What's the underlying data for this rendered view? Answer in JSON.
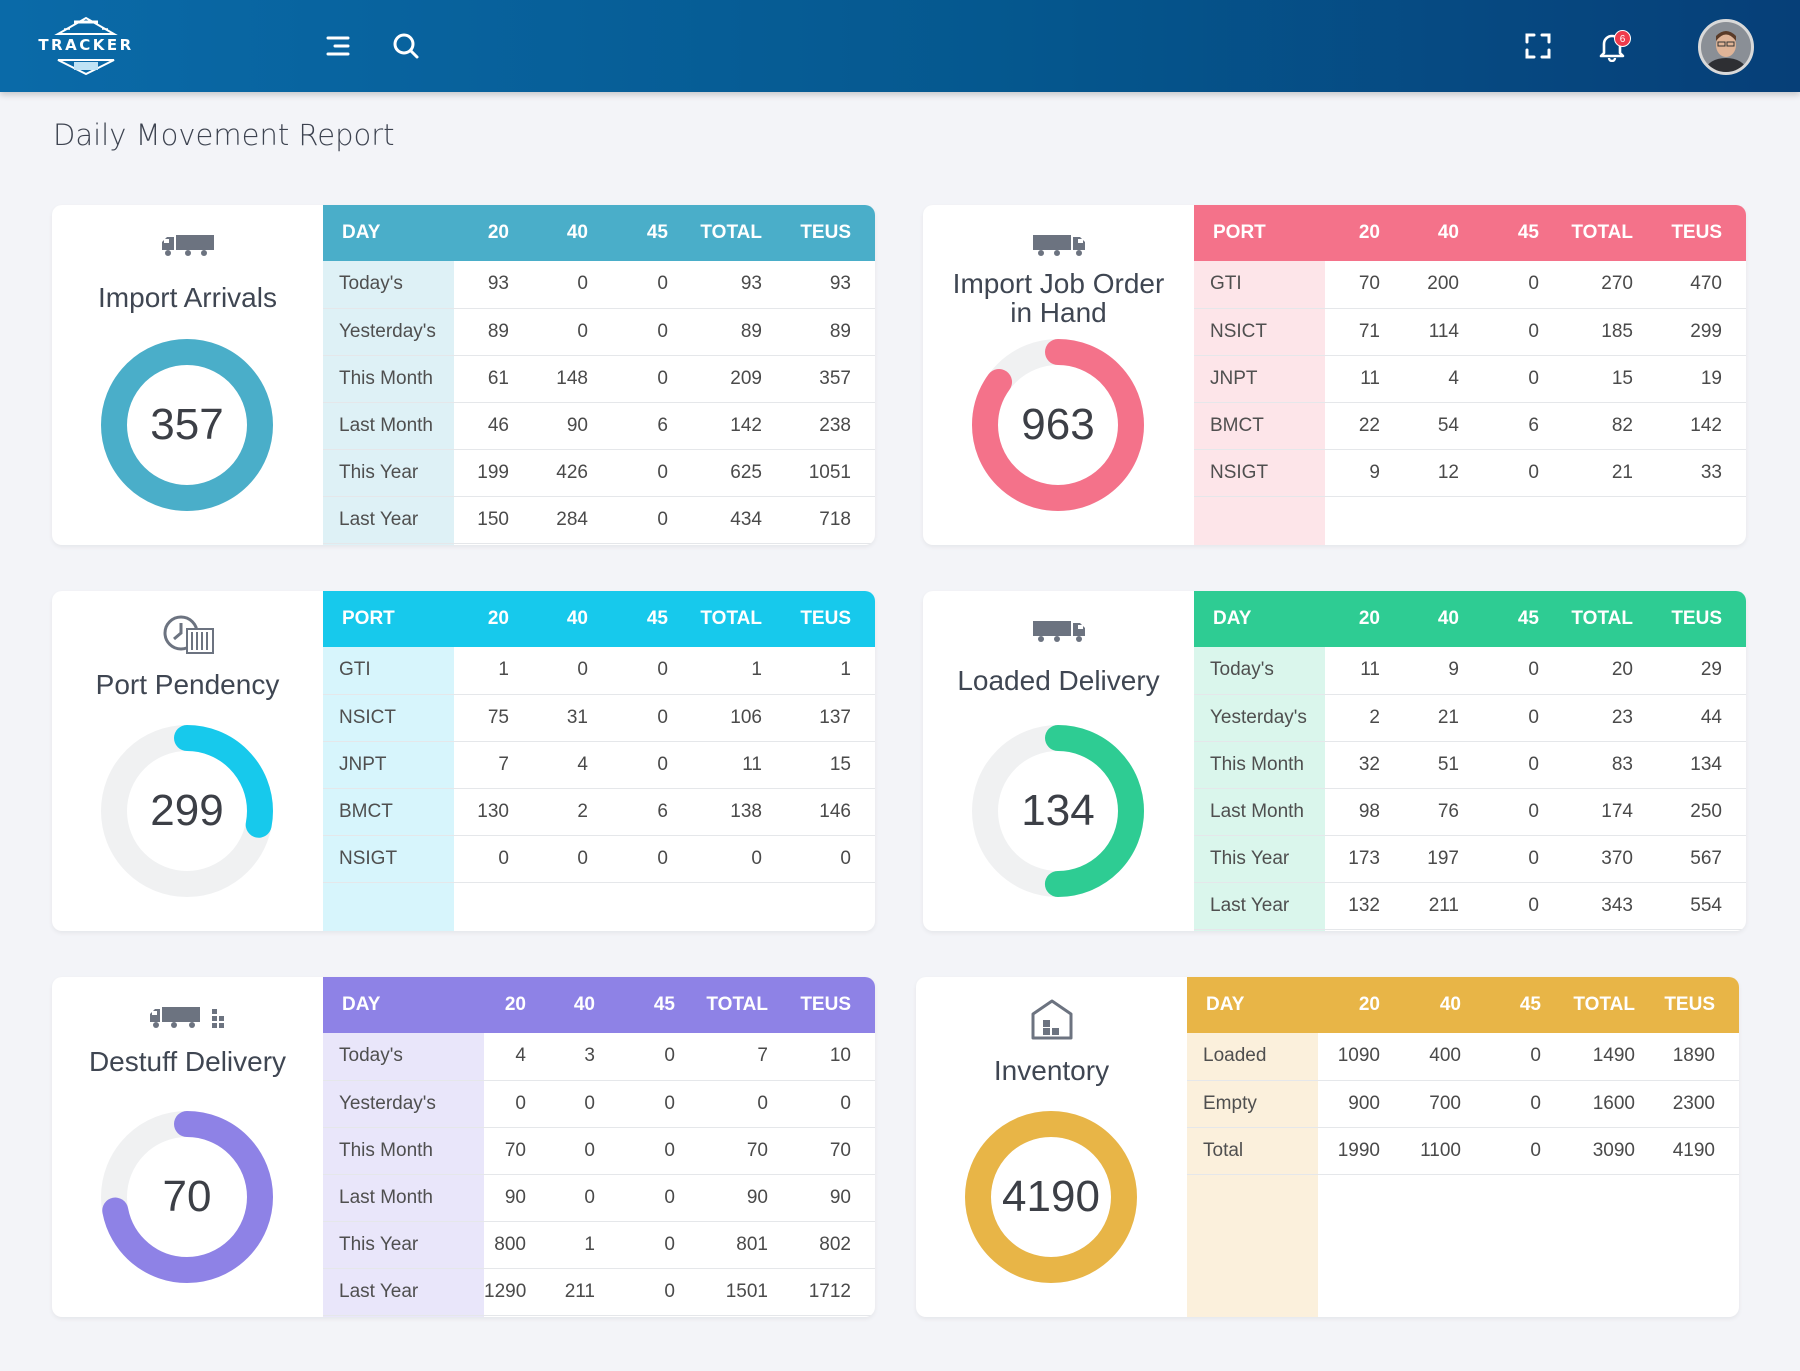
{
  "header": {
    "logo_text": "TRACKER",
    "notification_count": "6",
    "icons": [
      "menu-icon",
      "search-icon",
      "fullscreen-icon",
      "bell-icon"
    ]
  },
  "page": {
    "title": "Daily Movement Report"
  },
  "cards": {
    "import_arrivals": {
      "title": "Import Arrivals",
      "value": "357",
      "fraction": 1.0,
      "color": "#4aaec9",
      "col_tint": "#def1f6",
      "columns": [
        "DAY",
        "20",
        "40",
        "45",
        "TOTAL",
        "TEUS"
      ],
      "rows": [
        [
          "Today's",
          "93",
          "0",
          "0",
          "93",
          "93"
        ],
        [
          "Yesterday's",
          "89",
          "0",
          "0",
          "89",
          "89"
        ],
        [
          "This Month",
          "61",
          "148",
          "0",
          "209",
          "357"
        ],
        [
          "Last Month",
          "46",
          "90",
          "6",
          "142",
          "238"
        ],
        [
          "This Year",
          "199",
          "426",
          "0",
          "625",
          "1051"
        ],
        [
          "Last Year",
          "150",
          "284",
          "0",
          "434",
          "718"
        ]
      ]
    },
    "import_job_order": {
      "title_line1": "Import Job Order",
      "title_line2": "in Hand",
      "value": "963",
      "fraction": 0.85,
      "color": "#f4728a",
      "col_tint": "#fde5e9",
      "columns": [
        "PORT",
        "20",
        "40",
        "45",
        "TOTAL",
        "TEUS"
      ],
      "rows": [
        [
          "GTI",
          "70",
          "200",
          "0",
          "270",
          "470"
        ],
        [
          "NSICT",
          "71",
          "114",
          "0",
          "185",
          "299"
        ],
        [
          "JNPT",
          "11",
          "4",
          "0",
          "15",
          "19"
        ],
        [
          "BMCT",
          "22",
          "54",
          "6",
          "82",
          "142"
        ],
        [
          "NSIGT",
          "9",
          "12",
          "0",
          "21",
          "33"
        ]
      ]
    },
    "port_pendency": {
      "title": "Port Pendency",
      "value": "299",
      "fraction": 0.28,
      "color": "#17c9ec",
      "col_tint": "#d7f5fc",
      "columns": [
        "PORT",
        "20",
        "40",
        "45",
        "TOTAL",
        "TEUS"
      ],
      "rows": [
        [
          "GTI",
          "1",
          "0",
          "0",
          "1",
          "1"
        ],
        [
          "NSICT",
          "75",
          "31",
          "0",
          "106",
          "137"
        ],
        [
          "JNPT",
          "7",
          "4",
          "0",
          "11",
          "15"
        ],
        [
          "BMCT",
          "130",
          "2",
          "6",
          "138",
          "146"
        ],
        [
          "NSIGT",
          "0",
          "0",
          "0",
          "0",
          "0"
        ]
      ]
    },
    "loaded_delivery": {
      "title": "Loaded Delivery",
      "value": "134",
      "fraction": 0.5,
      "color": "#2ecc93",
      "col_tint": "#daf6ec",
      "columns": [
        "DAY",
        "20",
        "40",
        "45",
        "TOTAL",
        "TEUS"
      ],
      "rows": [
        [
          "Today's",
          "11",
          "9",
          "0",
          "20",
          "29"
        ],
        [
          "Yesterday's",
          "2",
          "21",
          "0",
          "23",
          "44"
        ],
        [
          "This Month",
          "32",
          "51",
          "0",
          "83",
          "134"
        ],
        [
          "Last Month",
          "98",
          "76",
          "0",
          "174",
          "250"
        ],
        [
          "This Year",
          "173",
          "197",
          "0",
          "370",
          "567"
        ],
        [
          "Last Year",
          "132",
          "211",
          "0",
          "343",
          "554"
        ]
      ]
    },
    "destuff_delivery": {
      "title": "Destuff Delivery",
      "value": "70",
      "fraction": 0.72,
      "color": "#8e82e6",
      "col_tint": "#e9e6fa",
      "columns": [
        "DAY",
        "20",
        "40",
        "45",
        "TOTAL",
        "TEUS"
      ],
      "rows": [
        [
          "Today's",
          "4",
          "3",
          "0",
          "7",
          "10"
        ],
        [
          "Yesterday's",
          "0",
          "0",
          "0",
          "0",
          "0"
        ],
        [
          "This Month",
          "70",
          "0",
          "0",
          "70",
          "70"
        ],
        [
          "Last Month",
          "90",
          "0",
          "0",
          "90",
          "90"
        ],
        [
          "This Year",
          "800",
          "1",
          "0",
          "801",
          "802"
        ],
        [
          "Last Year",
          "1290",
          "211",
          "0",
          "1501",
          "1712"
        ]
      ]
    },
    "inventory": {
      "title": "Inventory",
      "value": "4190",
      "fraction": 1.0,
      "color": "#e8b547",
      "col_tint": "#fbf0dc",
      "columns": [
        "DAY",
        "20",
        "40",
        "45",
        "TOTAL",
        "TEUS"
      ],
      "rows": [
        [
          "Loaded",
          "1090",
          "400",
          "0",
          "1490",
          "1890"
        ],
        [
          "Empty",
          "900",
          "700",
          "0",
          "1600",
          "2300"
        ],
        [
          "Total",
          "1990",
          "1100",
          "0",
          "3090",
          "4190"
        ]
      ]
    }
  }
}
